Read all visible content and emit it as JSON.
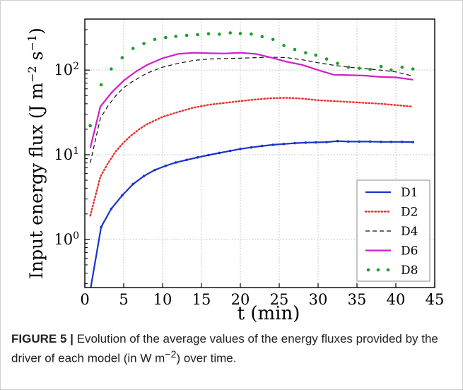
{
  "figure": {
    "caption_label": "FIGURE 5 |",
    "caption_text_before": " Evolution of the average values of the energy fluxes provided by the driver of each model (in W m",
    "caption_sup": "−2",
    "caption_text_after": ") over time."
  },
  "chart_data": {
    "type": "line",
    "xlabel": "t (min)",
    "ylabel_main": "Input energy flux (J m",
    "ylabel_sup1": "−2",
    "ylabel_mid": " s",
    "ylabel_sup2": "−1",
    "ylabel_end": ")",
    "xlim": [
      0,
      45
    ],
    "ylim": [
      0.27,
      400
    ],
    "yscale": "log",
    "grid": true,
    "legend_position": "bottom-right",
    "x_ticks": [
      {
        "value": 0,
        "label": "0"
      },
      {
        "value": 5,
        "label": "5"
      },
      {
        "value": 10,
        "label": "10"
      },
      {
        "value": 15,
        "label": "15"
      },
      {
        "value": 20,
        "label": "20"
      },
      {
        "value": 25,
        "label": "25"
      },
      {
        "value": 30,
        "label": "30"
      },
      {
        "value": 35,
        "label": "35"
      },
      {
        "value": 40,
        "label": "40"
      },
      {
        "value": 45,
        "label": "45"
      }
    ],
    "y_ticks": [
      {
        "value": 1,
        "base": "10",
        "exp": "0"
      },
      {
        "value": 10,
        "base": "10",
        "exp": "1"
      },
      {
        "value": 100,
        "base": "10",
        "exp": "2"
      }
    ],
    "series": [
      {
        "name": "D1",
        "color": "#1a35c8",
        "style": "solid-markers",
        "x": [
          0.7,
          2.1,
          3.4,
          4.8,
          6.2,
          7.6,
          9.0,
          10.4,
          11.7,
          13.1,
          14.5,
          15.9,
          17.3,
          18.7,
          20.0,
          21.4,
          22.8,
          24.2,
          25.6,
          27.0,
          28.4,
          29.7,
          31.1,
          32.5,
          33.9,
          35.3,
          36.7,
          38.1,
          39.4,
          40.8,
          42.2
        ],
        "y": [
          0.25,
          1.4,
          2.3,
          3.3,
          4.5,
          5.6,
          6.6,
          7.4,
          8.1,
          8.7,
          9.3,
          9.9,
          10.5,
          11.1,
          11.7,
          12.2,
          12.7,
          13.1,
          13.4,
          13.7,
          13.9,
          14.0,
          14.1,
          14.5,
          14.3,
          14.3,
          14.3,
          14.2,
          14.2,
          14.2,
          14.1
        ]
      },
      {
        "name": "D2",
        "color": "#e83030",
        "style": "dotted",
        "x": [
          0.7,
          2.0,
          3.0,
          4.0,
          5.0,
          6.0,
          7.0,
          8.0,
          10.0,
          12.0,
          14.0,
          16.0,
          18.0,
          20.0,
          22.0,
          24.0,
          26.0,
          28.0,
          30.0,
          32.0,
          34.0,
          36.0,
          38.0,
          40.0,
          42.2
        ],
        "y": [
          1.9,
          5.5,
          8.0,
          11.0,
          14.0,
          17.0,
          20.0,
          23.0,
          28.0,
          32.0,
          36.0,
          39.0,
          41.0,
          43.0,
          45.0,
          46.5,
          47.0,
          46.0,
          44.0,
          43.0,
          42.0,
          41.0,
          40.0,
          38.5,
          37.0
        ]
      },
      {
        "name": "D4",
        "color": "#111111",
        "style": "dashed",
        "x": [
          0.7,
          2.0,
          3.0,
          4.0,
          5.0,
          6.0,
          8.0,
          10.0,
          12.0,
          14.0,
          16.0,
          18.0,
          20.0,
          22.0,
          24.0,
          26.0,
          28.0,
          30.0,
          32.0,
          34.0,
          36.0,
          38.0,
          40.0,
          42.2
        ],
        "y": [
          8.0,
          27.0,
          38.0,
          50.0,
          62.0,
          72.0,
          92.0,
          108.0,
          120.0,
          130.0,
          135.0,
          137.0,
          138.0,
          140.0,
          142.0,
          140.0,
          132.0,
          122.0,
          114.0,
          108.0,
          104.0,
          100.0,
          95.0,
          85.0
        ]
      },
      {
        "name": "D6",
        "color": "#d020c8",
        "style": "solid",
        "x": [
          0.7,
          2.0,
          3.5,
          5.0,
          6.5,
          8.0,
          10.0,
          12.0,
          14.0,
          16.0,
          18.0,
          20.0,
          22.0,
          24.0,
          26.0,
          28.0,
          30.0,
          32.0,
          34.0,
          36.0,
          38.0,
          40.0,
          42.2
        ],
        "y": [
          12.0,
          37.0,
          55.0,
          75.0,
          95.0,
          115.0,
          138.0,
          155.0,
          160.0,
          158.0,
          157.0,
          160.0,
          155.0,
          140.0,
          125.0,
          115.0,
          100.0,
          88.0,
          87.0,
          86.0,
          83.0,
          82.0,
          77.0
        ]
      },
      {
        "name": "D8",
        "color": "#1c9e2a",
        "style": "dots",
        "x": [
          0.7,
          2.1,
          3.4,
          4.8,
          6.2,
          7.6,
          9.0,
          10.4,
          11.7,
          13.1,
          14.5,
          15.9,
          17.3,
          18.7,
          20.0,
          21.4,
          22.8,
          24.2,
          25.6,
          27.0,
          28.4,
          29.7,
          31.1,
          32.5,
          33.9,
          35.3,
          36.7,
          38.1,
          39.4,
          40.8,
          42.2
        ],
        "y": [
          22.0,
          67.0,
          103.0,
          140.0,
          180.0,
          205.0,
          230.0,
          242.0,
          250.0,
          257.0,
          262.0,
          268.0,
          265.0,
          275.0,
          270.0,
          266.0,
          248.0,
          230.0,
          195.0,
          175.0,
          160.0,
          150.0,
          135.0,
          120.0,
          108.0,
          105.0,
          102.0,
          110.0,
          100.0,
          108.0,
          103.0
        ]
      }
    ]
  }
}
